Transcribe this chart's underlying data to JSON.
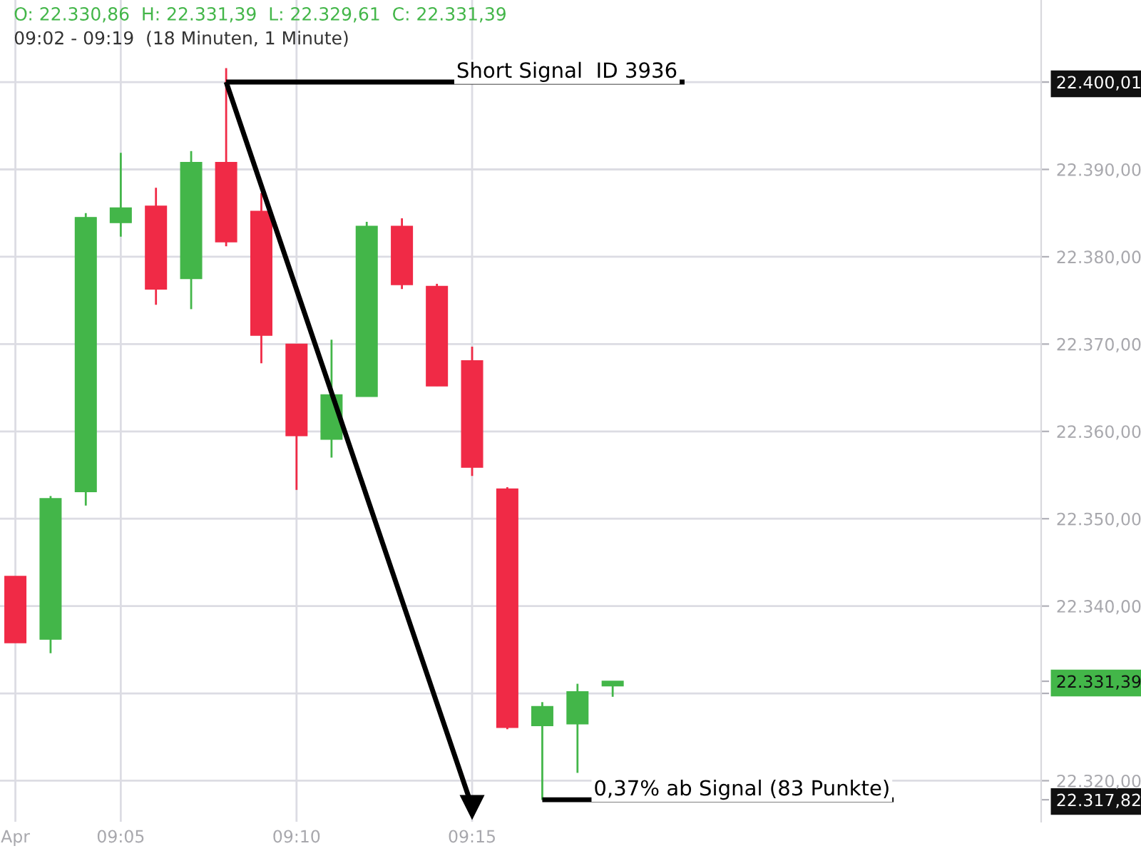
{
  "chart_data": {
    "type": "candlestick",
    "x": [
      9.0333,
      9.05,
      9.0667,
      9.0833,
      9.1,
      9.1167,
      9.1333,
      9.15,
      9.1667,
      9.1833,
      9.2,
      9.2167,
      9.2333,
      9.25,
      9.2667,
      9.2833,
      9.3,
      9.3167
    ],
    "ohlc": [
      [
        22343.4,
        22343.4,
        22335.8,
        22335.8
      ],
      [
        22336.2,
        22352.6,
        22334.6,
        22352.3
      ],
      [
        22353.1,
        22385.0,
        22351.5,
        22384.5
      ],
      [
        22383.9,
        22391.9,
        22382.3,
        22385.6
      ],
      [
        22385.8,
        22387.9,
        22374.5,
        22376.3
      ],
      [
        22377.5,
        22392.1,
        22374.0,
        22390.8
      ],
      [
        22390.8,
        22401.6,
        22381.2,
        22381.7
      ],
      [
        22385.2,
        22387.3,
        22367.8,
        22371.0
      ],
      [
        22370.0,
        22370.0,
        22353.3,
        22359.5
      ],
      [
        22359.1,
        22370.5,
        22357.0,
        22364.2
      ],
      [
        22364.0,
        22384.0,
        22364.0,
        22383.5
      ],
      [
        22383.5,
        22384.4,
        22376.3,
        22376.8
      ],
      [
        22376.6,
        22376.9,
        22365.2,
        22365.2
      ],
      [
        22368.1,
        22369.7,
        22354.9,
        22355.9
      ],
      [
        22353.4,
        22353.6,
        22325.9,
        22326.1
      ],
      [
        22326.3,
        22329.0,
        22317.8,
        22328.5
      ],
      [
        22326.5,
        22331.1,
        22320.9,
        22330.2
      ],
      [
        22330.86,
        22331.39,
        22329.61,
        22331.39
      ]
    ],
    "colors": [
      "#f02a46",
      "#43b649",
      "#43b649",
      "#43b649",
      "#f02a46",
      "#43b649",
      "#f02a46",
      "#f02a46",
      "#f02a46",
      "#43b649",
      "#43b649",
      "#f02a46",
      "#f02a46",
      "#f02a46",
      "#f02a46",
      "#43b649",
      "#43b649",
      "#43b649"
    ],
    "series": [
      {
        "type": "line",
        "x": [
          9.1333,
          9.3508
        ],
        "values": [
          22400.01,
          22400.01
        ],
        "color": "#000000"
      },
      {
        "type": "line",
        "x": [
          9.2833,
          9.45
        ],
        "values": [
          22317.82,
          22317.82
        ],
        "color": "#000000"
      },
      {
        "type": "line",
        "x": [
          9.1333,
          9.25
        ],
        "values": [
          22400.01,
          22317
        ],
        "color": "#000000",
        "marker": "triangle"
      }
    ],
    "xlim": [
      9.026,
      9.52
    ],
    "xticks": [
      {
        "value": 9.0333,
        "label": "Apr"
      },
      {
        "value": 9.0833,
        "label": "09:05"
      },
      {
        "value": 9.1667,
        "label": "09:10"
      },
      {
        "value": 9.25,
        "label": "09:15"
      }
    ],
    "ylim": [
      22315.3,
      22409.4
    ],
    "yticks": [
      {
        "value": 22317.82,
        "label": "22.317,82"
      },
      {
        "value": 22320,
        "label": "22.320,00"
      },
      {
        "value": 22330,
        "label": null
      },
      {
        "value": 22331.39,
        "label": "22.331,39"
      },
      {
        "value": 22340,
        "label": "22.340,00"
      },
      {
        "value": 22350,
        "label": "22.350,00"
      },
      {
        "value": 22360,
        "label": "22.360,00"
      },
      {
        "value": 22370,
        "label": "22.370,00"
      },
      {
        "value": 22380,
        "label": "22.380,00"
      },
      {
        "value": 22390,
        "label": "22.390,00"
      },
      {
        "value": 22400,
        "label": null
      },
      {
        "value": 22400.01,
        "label": "22.400,01"
      }
    ],
    "grid": true,
    "annotations": [
      "O: 22.330,86  H: 22.331,39  L: 22.329,61  C: 22.331,39",
      "09:02 - 09:19  (18 Minuten, 1 Minute)",
      {
        "text": "Short Signal  ID 3936",
        "x": 9.295,
        "y": 22400.01
      },
      {
        "text": "0,37% ab Signal (83 Punkte)",
        "x": 9.378,
        "y": 22317.82
      }
    ]
  }
}
